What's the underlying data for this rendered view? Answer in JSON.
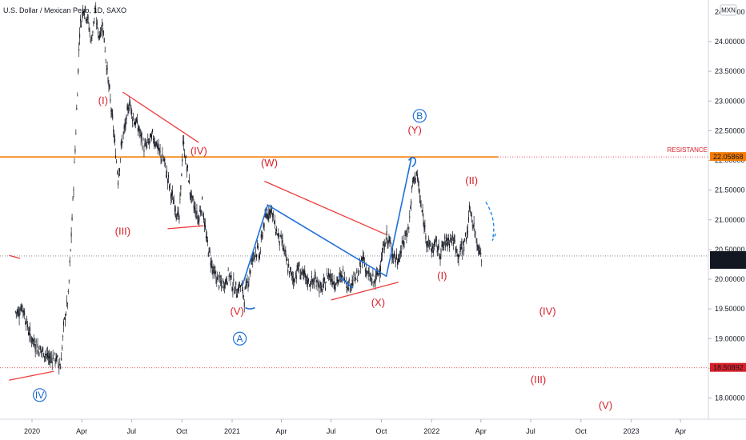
{
  "header": {
    "title": "U.S. Dollar / Mexican Peso, 1D, SAXO",
    "currency": "MXN"
  },
  "chart_data": {
    "type": "candlestick",
    "symbol": "USDMXN",
    "timeframe": "1D",
    "y_ticks": [
      "24.00000",
      "23.50000",
      "23.00000",
      "22.50000",
      "22.00000",
      "21.50000",
      "21.00000",
      "20.50000",
      "20.00000",
      "19.50000",
      "19.00000",
      "18.50000",
      "18.00000"
    ],
    "ylim": [
      17.8,
      25.05
    ],
    "x_ticks": [
      "2020",
      "Apr",
      "Jul",
      "Oct",
      "2021",
      "Apr",
      "Jul",
      "Oct",
      "2022",
      "Apr",
      "Jul",
      "Oct",
      "2023",
      "Apr"
    ],
    "price_tags": [
      {
        "value": "22.05868",
        "y": 22.05868,
        "color": "#f57c00"
      },
      {
        "value": "20.39129",
        "y": 20.39129,
        "color": "#131722",
        "countdown": "09:29:49"
      },
      {
        "value": "18.50892",
        "y": 18.50892,
        "color": "#d8202a"
      }
    ],
    "resistance_label": "RESISTANCE",
    "resistance_level": 22.05868,
    "support_level": 18.50892,
    "current_price": 20.39129,
    "series": {
      "close": [
        [
          "2019-12-01",
          19.45
        ],
        [
          "2019-12-08",
          19.55
        ],
        [
          "2019-12-15",
          19.3
        ],
        [
          "2019-12-22",
          19.05
        ],
        [
          "2019-12-29",
          18.95
        ],
        [
          "2020-01-05",
          18.85
        ],
        [
          "2020-01-12",
          18.8
        ],
        [
          "2020-01-19",
          18.75
        ],
        [
          "2020-01-26",
          18.65
        ],
        [
          "2020-02-02",
          18.7
        ],
        [
          "2020-02-09",
          18.65
        ],
        [
          "2020-02-16",
          18.55
        ],
        [
          "2020-02-23",
          19.3
        ],
        [
          "2020-03-01",
          19.7
        ],
        [
          "2020-03-08",
          21.0
        ],
        [
          "2020-03-15",
          22.5
        ],
        [
          "2020-03-22",
          24.2
        ],
        [
          "2020-03-29",
          24.6
        ],
        [
          "2020-04-05",
          24.4
        ],
        [
          "2020-04-12",
          24.0
        ],
        [
          "2020-04-19",
          24.5
        ],
        [
          "2020-04-26",
          24.1
        ],
        [
          "2020-05-03",
          24.3
        ],
        [
          "2020-05-10",
          23.6
        ],
        [
          "2020-05-17",
          23.0
        ],
        [
          "2020-05-24",
          22.4
        ],
        [
          "2020-05-31",
          21.7
        ],
        [
          "2020-06-07",
          22.3
        ],
        [
          "2020-06-14",
          22.6
        ],
        [
          "2020-06-21",
          23.0
        ],
        [
          "2020-06-28",
          22.7
        ],
        [
          "2020-07-05",
          22.6
        ],
        [
          "2020-07-12",
          22.4
        ],
        [
          "2020-07-19",
          22.2
        ],
        [
          "2020-07-26",
          22.3
        ],
        [
          "2020-08-02",
          22.4
        ],
        [
          "2020-08-09",
          22.3
        ],
        [
          "2020-08-16",
          22.1
        ],
        [
          "2020-08-23",
          22.0
        ],
        [
          "2020-08-30",
          21.7
        ],
        [
          "2020-09-06",
          21.4
        ],
        [
          "2020-09-13",
          21.2
        ],
        [
          "2020-09-20",
          21.0
        ],
        [
          "2020-09-27",
          22.3
        ],
        [
          "2020-10-04",
          21.9
        ],
        [
          "2020-10-11",
          21.4
        ],
        [
          "2020-10-18",
          21.2
        ],
        [
          "2020-10-25",
          21.0
        ],
        [
          "2020-11-01",
          21.3
        ],
        [
          "2020-11-08",
          20.7
        ],
        [
          "2020-11-15",
          20.4
        ],
        [
          "2020-11-22",
          20.1
        ],
        [
          "2020-11-29",
          20.0
        ],
        [
          "2020-12-06",
          19.9
        ],
        [
          "2020-12-13",
          19.95
        ],
        [
          "2020-12-20",
          20.1
        ],
        [
          "2020-12-27",
          19.9
        ],
        [
          "2021-01-03",
          19.8
        ],
        [
          "2021-01-10",
          19.9
        ],
        [
          "2021-01-17",
          19.7
        ],
        [
          "2021-01-24",
          20.0
        ],
        [
          "2021-01-31",
          20.3
        ],
        [
          "2021-02-07",
          20.5
        ],
        [
          "2021-02-14",
          20.4
        ],
        [
          "2021-02-21",
          20.9
        ],
        [
          "2021-02-28",
          21.1
        ],
        [
          "2021-03-07",
          21.2
        ],
        [
          "2021-03-14",
          20.9
        ],
        [
          "2021-03-21",
          20.7
        ],
        [
          "2021-03-28",
          20.6
        ],
        [
          "2021-04-04",
          20.3
        ],
        [
          "2021-04-11",
          20.1
        ],
        [
          "2021-04-18",
          20.0
        ],
        [
          "2021-04-25",
          20.2
        ],
        [
          "2021-05-02",
          20.1
        ],
        [
          "2021-05-09",
          20.0
        ],
        [
          "2021-05-16",
          19.95
        ],
        [
          "2021-05-23",
          19.95
        ],
        [
          "2021-05-30",
          20.0
        ],
        [
          "2021-06-06",
          19.8
        ],
        [
          "2021-06-13",
          19.9
        ],
        [
          "2021-06-20",
          20.1
        ],
        [
          "2021-06-27",
          20.0
        ],
        [
          "2021-07-04",
          19.95
        ],
        [
          "2021-07-11",
          20.0
        ],
        [
          "2021-07-18",
          20.1
        ],
        [
          "2021-07-25",
          19.9
        ],
        [
          "2021-08-01",
          19.95
        ],
        [
          "2021-08-08",
          20.0
        ],
        [
          "2021-08-15",
          20.1
        ],
        [
          "2021-08-22",
          20.4
        ],
        [
          "2021-08-29",
          20.1
        ],
        [
          "2021-09-05",
          20.0
        ],
        [
          "2021-09-12",
          19.95
        ],
        [
          "2021-09-19",
          20.1
        ],
        [
          "2021-09-26",
          20.4
        ],
        [
          "2021-10-03",
          20.7
        ],
        [
          "2021-10-10",
          20.6
        ],
        [
          "2021-10-17",
          20.4
        ],
        [
          "2021-10-24",
          20.3
        ],
        [
          "2021-10-31",
          20.5
        ],
        [
          "2021-11-07",
          20.7
        ],
        [
          "2021-11-14",
          20.9
        ],
        [
          "2021-11-21",
          21.6
        ],
        [
          "2021-11-28",
          21.8
        ],
        [
          "2021-12-05",
          21.3
        ],
        [
          "2021-12-12",
          20.9
        ],
        [
          "2021-12-19",
          20.6
        ],
        [
          "2021-12-26",
          20.5
        ],
        [
          "2022-01-02",
          20.6
        ],
        [
          "2022-01-09",
          20.45
        ],
        [
          "2022-01-16",
          20.55
        ],
        [
          "2022-01-23",
          20.65
        ],
        [
          "2022-01-30",
          20.7
        ],
        [
          "2022-02-06",
          20.6
        ],
        [
          "2022-02-13",
          20.4
        ],
        [
          "2022-02-20",
          20.55
        ],
        [
          "2022-02-27",
          20.7
        ],
        [
          "2022-03-06",
          21.2
        ],
        [
          "2022-03-13",
          20.85
        ],
        [
          "2022-03-20",
          20.6
        ],
        [
          "2022-03-27",
          20.39
        ]
      ]
    },
    "projection": [
      {
        "date": "2022-04-10",
        "value": 21.3
      },
      {
        "date": "2022-04-22",
        "value": 20.65
      },
      {
        "date": "2022-04-30",
        "value": 20.8
      }
    ],
    "wave_labels": [
      {
        "text": "(I)",
        "date": "2020-05-10",
        "y": 22.95,
        "color": "red"
      },
      {
        "text": "(III)",
        "date": "2020-06-15",
        "y": 20.75,
        "color": "red"
      },
      {
        "text": "(IV)",
        "date": "2020-11-01",
        "y": 22.1,
        "color": "red"
      },
      {
        "text": "(V)",
        "date": "2021-01-10",
        "y": 19.4,
        "color": "red"
      },
      {
        "text": "(W)",
        "date": "2021-03-10",
        "y": 21.9,
        "color": "red"
      },
      {
        "text": "(X)",
        "date": "2021-09-25",
        "y": 19.55,
        "color": "red"
      },
      {
        "text": "(Y)",
        "date": "2021-12-01",
        "y": 22.45,
        "color": "red"
      },
      {
        "text": "(I)",
        "date": "2022-01-20",
        "y": 20.0,
        "color": "red"
      },
      {
        "text": "(II)",
        "date": "2022-03-15",
        "y": 21.6,
        "color": "red"
      },
      {
        "text": "(IV)",
        "date": "2022-08-01",
        "y": 19.4,
        "color": "red"
      },
      {
        "text": "(III)",
        "date": "2022-07-15",
        "y": 18.25,
        "color": "red"
      },
      {
        "text": "(V)",
        "date": "2022-11-15",
        "y": 17.82,
        "color": "red"
      }
    ],
    "circle_labels": [
      {
        "text": "IV",
        "date": "2020-01-15",
        "y": 18.05
      },
      {
        "text": "A",
        "date": "2021-01-15",
        "y": 19.0
      },
      {
        "text": "B",
        "date": "2021-12-10",
        "y": 22.75
      }
    ],
    "red_lines": [
      {
        "from": [
          "2020-06-15",
          23.15
        ],
        "to": [
          "2020-11-01",
          22.3
        ]
      },
      {
        "from": [
          "2020-09-05",
          20.85
        ],
        "to": [
          "2020-11-10",
          20.9
        ]
      },
      {
        "from": [
          "2021-03-01",
          21.65
        ],
        "to": [
          "2021-10-10",
          20.75
        ]
      },
      {
        "from": [
          "2021-07-01",
          19.65
        ],
        "to": [
          "2021-11-01",
          19.95
        ]
      },
      {
        "from": [
          "2019-11-20",
          18.3
        ],
        "to": [
          "2020-02-10",
          18.45
        ]
      },
      {
        "from": [
          "2019-11-20",
          20.4
        ],
        "to": [
          "2019-12-10",
          20.35
        ]
      }
    ],
    "blue_lines": [
      {
        "points": [
          [
            "2021-01-20",
            19.9
          ],
          [
            "2021-03-07",
            21.25
          ],
          [
            "2021-10-10",
            20.05
          ],
          [
            "2021-11-25",
            22.05
          ]
        ]
      },
      {
        "points": [
          [
            "2021-07-15",
            20.05
          ],
          [
            "2021-08-10",
            19.85
          ]
        ]
      }
    ]
  }
}
